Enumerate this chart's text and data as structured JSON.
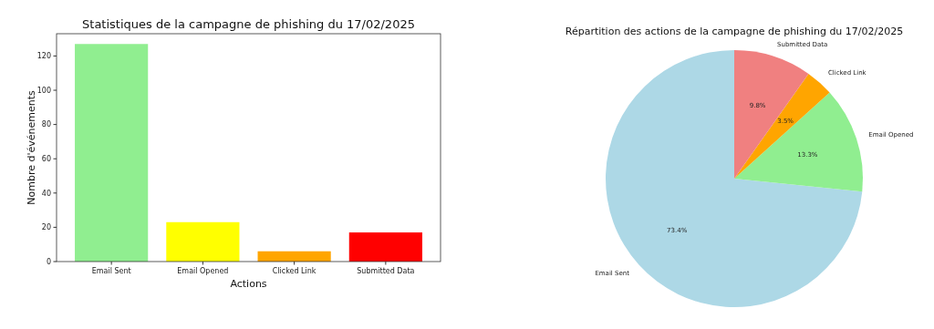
{
  "chart_data": [
    {
      "type": "bar",
      "title": "Statistiques de la campagne de phishing du 17/02/2025",
      "xlabel": "Actions",
      "ylabel": "Nombre d'événements",
      "categories": [
        "Email Sent",
        "Email Opened",
        "Clicked Link",
        "Submitted Data"
      ],
      "values": [
        127,
        23,
        6,
        17
      ],
      "colors": [
        "#90ee90",
        "#ffff00",
        "#ffa500",
        "#ff0000"
      ],
      "ylim": [
        0,
        133
      ],
      "yticks": [
        0,
        20,
        40,
        60,
        80,
        100,
        120
      ],
      "grid": false
    },
    {
      "type": "pie",
      "title": "Répartition des actions de la campagne de phishing du 17/02/2025",
      "categories": [
        "Email Sent",
        "Email Opened",
        "Clicked Link",
        "Submitted Data"
      ],
      "values": [
        73.4,
        13.3,
        3.5,
        9.8
      ],
      "colors": [
        "#add8e6",
        "#90ee90",
        "#ffa500",
        "#f08080"
      ],
      "value_labels": [
        "73.4%",
        "13.3%",
        "3.5%",
        "9.8%"
      ]
    }
  ]
}
